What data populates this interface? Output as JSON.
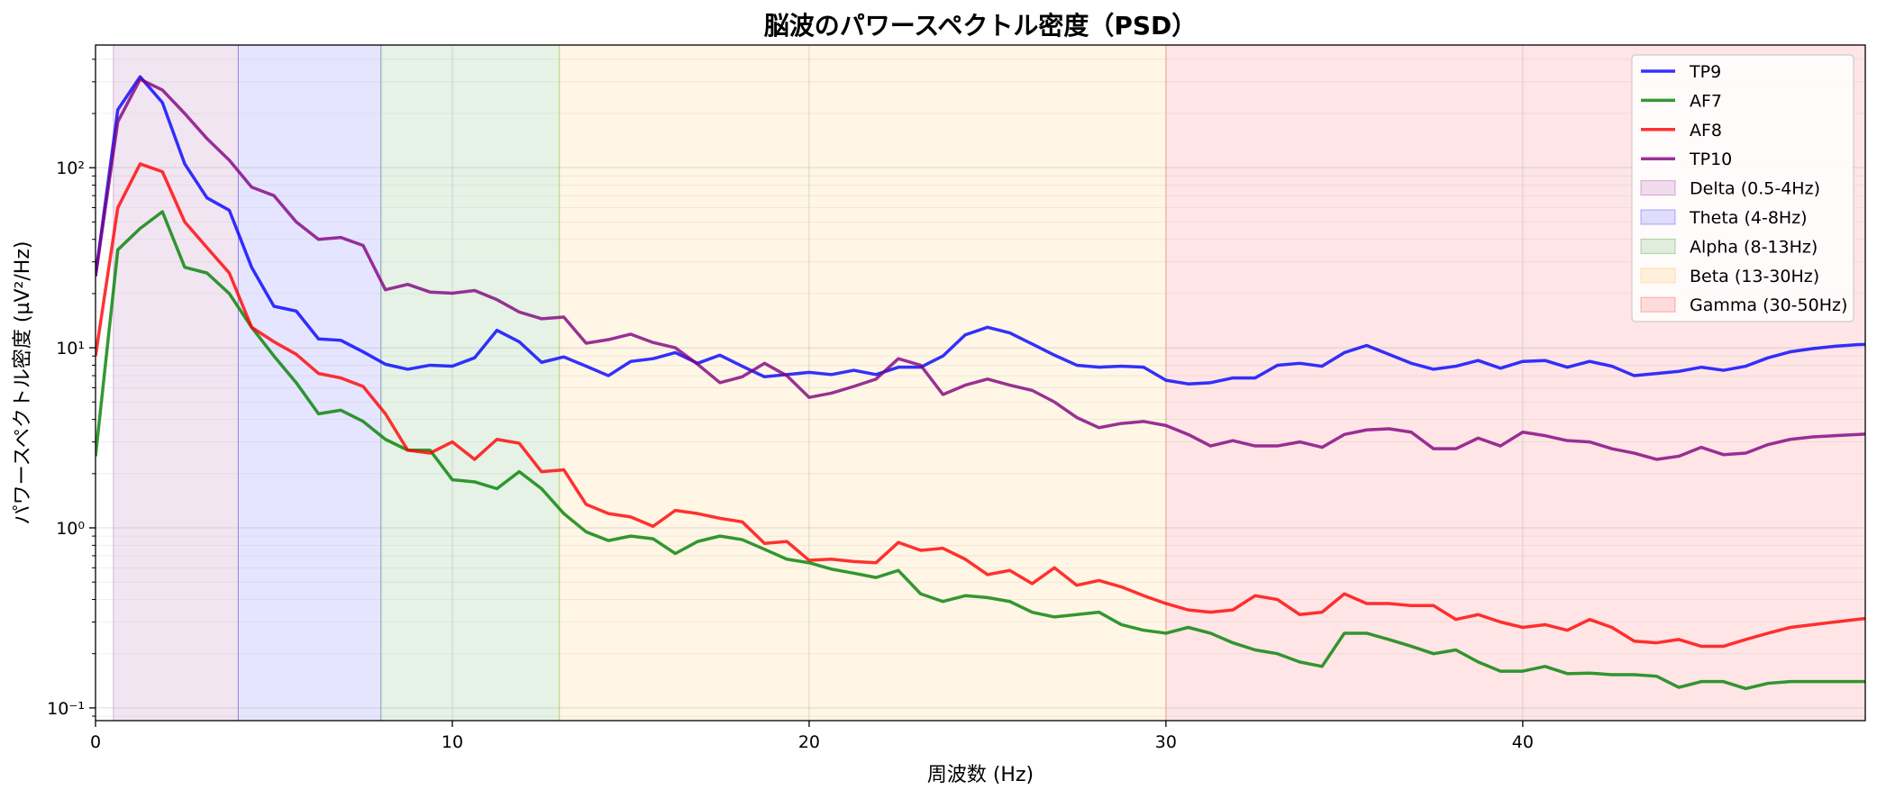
{
  "chart_data": {
    "type": "line",
    "title": "脳波のパワースペクトル密度（PSD）",
    "xlabel": "周波数 (Hz)",
    "ylabel": "パワースペクトル密度 (µV²/Hz)",
    "xlim": [
      0,
      49.6
    ],
    "ylim": [
      0.085,
      480
    ],
    "yscale": "log",
    "grid": true,
    "legend_position": "top-right",
    "x_ticks": [
      0,
      10,
      20,
      30,
      40
    ],
    "x_tick_labels": [
      "0",
      "10",
      "20",
      "30",
      "40"
    ],
    "y_ticks": [
      0.1,
      1,
      10,
      100
    ],
    "y_tick_labels": [
      "10⁻¹",
      "10⁰",
      "10¹",
      "10²"
    ],
    "bands": [
      {
        "name": "Delta (0.5-4Hz)",
        "range": [
          0.5,
          4
        ],
        "color": "#800080",
        "opacity": 0.1
      },
      {
        "name": "Theta (4-8Hz)",
        "range": [
          4,
          8
        ],
        "color": "#0000ff",
        "opacity": 0.1
      },
      {
        "name": "Alpha (8-13Hz)",
        "range": [
          8,
          13
        ],
        "color": "#008000",
        "opacity": 0.1
      },
      {
        "name": "Beta (13-30Hz)",
        "range": [
          13,
          30
        ],
        "color": "#ffa500",
        "opacity": 0.1
      },
      {
        "name": "Gamma (30-50Hz)",
        "range": [
          30,
          50
        ],
        "color": "#ff0000",
        "opacity": 0.1
      }
    ],
    "x": [
      0.0,
      0.625,
      1.25,
      1.875,
      2.5,
      3.125,
      3.75,
      4.375,
      5.0,
      5.625,
      6.25,
      6.875,
      7.5,
      8.125,
      8.75,
      9.375,
      10.0,
      10.625,
      11.25,
      11.875,
      12.5,
      13.125,
      13.75,
      14.375,
      15.0,
      15.625,
      16.25,
      16.875,
      17.5,
      18.125,
      18.75,
      19.375,
      20.0,
      20.625,
      21.25,
      21.875,
      22.5,
      23.125,
      23.75,
      24.375,
      25.0,
      25.625,
      26.25,
      26.875,
      27.5,
      28.125,
      28.75,
      29.375,
      30.0,
      30.625,
      31.25,
      31.875,
      32.5,
      33.125,
      33.75,
      34.375,
      35.0,
      35.625,
      36.25,
      36.875,
      37.5,
      38.125,
      38.75,
      39.375,
      40.0,
      40.625,
      41.25,
      41.875,
      42.5,
      43.125,
      43.75,
      44.375,
      45.0,
      45.625,
      46.25,
      46.875,
      47.5,
      48.125,
      48.75,
      49.375,
      50.0
    ],
    "series": [
      {
        "name": "TP9",
        "color": "#0000ff",
        "values": [
          25,
          210,
          320,
          230,
          105,
          68,
          58,
          28,
          17,
          16,
          11.2,
          11,
          9.5,
          8.1,
          7.6,
          8.0,
          7.9,
          8.8,
          12.5,
          10.8,
          8.3,
          8.9,
          7.9,
          7.0,
          8.4,
          8.7,
          9.4,
          8.2,
          9.1,
          7.9,
          6.9,
          7.1,
          7.3,
          7.1,
          7.5,
          7.1,
          7.8,
          7.8,
          9.0,
          11.8,
          13.0,
          12.1,
          10.5,
          9.1,
          8.0,
          7.8,
          7.9,
          7.8,
          6.6,
          6.3,
          6.4,
          6.8,
          6.8,
          8.0,
          8.2,
          7.9,
          9.4,
          10.3,
          9.2,
          8.2,
          7.6,
          7.9,
          8.5,
          7.7,
          8.4,
          8.5,
          7.8,
          8.4,
          7.9,
          7.0,
          7.2,
          7.4,
          7.8,
          7.5,
          7.9,
          8.8,
          9.5,
          9.9,
          10.2,
          10.4,
          10.5
        ]
      },
      {
        "name": "AF7",
        "color": "#008000",
        "values": [
          2.5,
          35,
          46,
          57,
          28,
          26,
          20,
          13,
          9,
          6.4,
          4.3,
          4.5,
          3.9,
          3.1,
          2.7,
          2.7,
          1.85,
          1.8,
          1.65,
          2.05,
          1.65,
          1.2,
          0.95,
          0.85,
          0.9,
          0.87,
          0.72,
          0.84,
          0.9,
          0.86,
          0.76,
          0.67,
          0.64,
          0.59,
          0.56,
          0.53,
          0.58,
          0.43,
          0.39,
          0.42,
          0.41,
          0.39,
          0.34,
          0.32,
          0.33,
          0.34,
          0.29,
          0.27,
          0.26,
          0.28,
          0.26,
          0.23,
          0.21,
          0.2,
          0.18,
          0.17,
          0.26,
          0.26,
          0.24,
          0.22,
          0.2,
          0.21,
          0.18,
          0.16,
          0.16,
          0.17,
          0.155,
          0.156,
          0.153,
          0.153,
          0.15,
          0.13,
          0.14,
          0.14,
          0.128,
          0.137,
          0.14,
          0.14,
          0.14,
          0.14,
          0.14
        ]
      },
      {
        "name": "AF8",
        "color": "#ff0000",
        "values": [
          9,
          60,
          105,
          95,
          50,
          36,
          26,
          13,
          10.8,
          9.2,
          7.2,
          6.8,
          6.1,
          4.3,
          2.7,
          2.6,
          3.0,
          2.4,
          3.1,
          2.95,
          2.05,
          2.1,
          1.35,
          1.2,
          1.15,
          1.02,
          1.25,
          1.2,
          1.13,
          1.08,
          0.82,
          0.84,
          0.66,
          0.67,
          0.65,
          0.64,
          0.83,
          0.75,
          0.77,
          0.67,
          0.55,
          0.58,
          0.49,
          0.6,
          0.48,
          0.51,
          0.47,
          0.42,
          0.38,
          0.35,
          0.34,
          0.35,
          0.42,
          0.4,
          0.33,
          0.34,
          0.43,
          0.38,
          0.38,
          0.37,
          0.37,
          0.31,
          0.33,
          0.3,
          0.28,
          0.29,
          0.27,
          0.31,
          0.28,
          0.235,
          0.23,
          0.24,
          0.22,
          0.22,
          0.24,
          0.26,
          0.28,
          0.29,
          0.3,
          0.31,
          0.32
        ]
      },
      {
        "name": "TP10",
        "color": "#800080",
        "values": [
          25,
          180,
          310,
          270,
          200,
          145,
          110,
          78,
          70,
          50,
          40,
          41,
          37,
          21,
          22.5,
          20.4,
          20.1,
          20.8,
          18.5,
          15.8,
          14.5,
          14.8,
          10.6,
          11.1,
          11.9,
          10.7,
          10.0,
          8.1,
          6.4,
          6.9,
          8.2,
          7.0,
          5.3,
          5.6,
          6.1,
          6.7,
          8.7,
          8.0,
          5.5,
          6.2,
          6.7,
          6.2,
          5.8,
          5.0,
          4.1,
          3.6,
          3.8,
          3.9,
          3.7,
          3.3,
          2.85,
          3.05,
          2.85,
          2.85,
          3.0,
          2.8,
          3.3,
          3.5,
          3.55,
          3.4,
          2.75,
          2.75,
          3.15,
          2.85,
          3.4,
          3.25,
          3.05,
          3.0,
          2.75,
          2.6,
          2.4,
          2.5,
          2.8,
          2.55,
          2.6,
          2.9,
          3.1,
          3.2,
          3.25,
          3.3,
          3.35
        ]
      }
    ]
  }
}
